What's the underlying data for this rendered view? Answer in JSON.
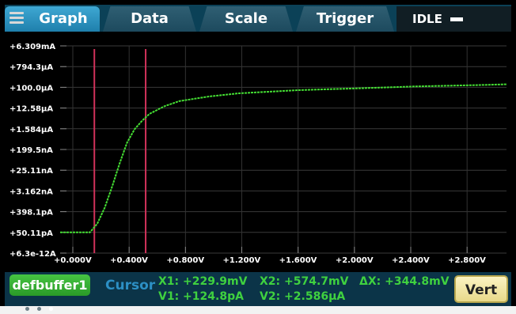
{
  "tabs": [
    {
      "label": "Graph",
      "active": true
    },
    {
      "label": "Data"
    },
    {
      "label": "Scale"
    },
    {
      "label": "Trigger"
    }
  ],
  "status": {
    "label": "IDLE"
  },
  "y_ticks": [
    "+6.309mA",
    "+794.3μA",
    "+100.0μA",
    "+12.58μA",
    "+1.584μA",
    "+199.5nA",
    "+25.11nA",
    "+3.162nA",
    "+398.1pA",
    "+50.11pA",
    "+6.3e-12A"
  ],
  "x_ticks": [
    "+0.000V",
    "+0.400V",
    "+0.800V",
    "+1.200V",
    "+1.600V",
    "+2.000V",
    "+2.400V",
    "+2.800V"
  ],
  "bottom": {
    "buffer": "defbuffer1",
    "cursor": "Cursor",
    "x1": "X1: +229.9mV",
    "x2": "X2: +574.7mV",
    "dx": "ΔX: +344.8mV",
    "y1": "V1: +124.8pA",
    "y2": "V2: +2.586μA",
    "vert": "Vert"
  },
  "colors": {
    "trace": "#44dd33",
    "cursor": "#d0325a",
    "accent": "#2f97c8"
  },
  "chart_data": {
    "type": "line",
    "title": "",
    "xlabel": "",
    "ylabel": "",
    "x_range_V": [
      0.0,
      3.0
    ],
    "y_scale": "log",
    "y_range_A": [
      6.3e-12,
      0.006309
    ],
    "cursors_V": [
      0.2299,
      0.5747
    ],
    "series": [
      {
        "x": [
          0.0,
          0.1,
          0.2,
          0.25,
          0.3,
          0.35,
          0.4,
          0.45,
          0.5,
          0.55,
          0.6,
          0.7,
          0.8,
          1.0,
          1.2,
          1.6,
          2.0,
          2.4,
          2.8,
          3.0
        ],
        "y": [
          5e-11,
          5e-11,
          5e-11,
          1.2e-10,
          6e-10,
          5e-09,
          5e-08,
          4e-07,
          1.5e-06,
          3.5e-06,
          7e-06,
          1.5e-05,
          2.5e-05,
          4e-05,
          5.5e-05,
          7.5e-05,
          9e-05,
          0.00011,
          0.000125,
          0.000135
        ]
      }
    ]
  }
}
